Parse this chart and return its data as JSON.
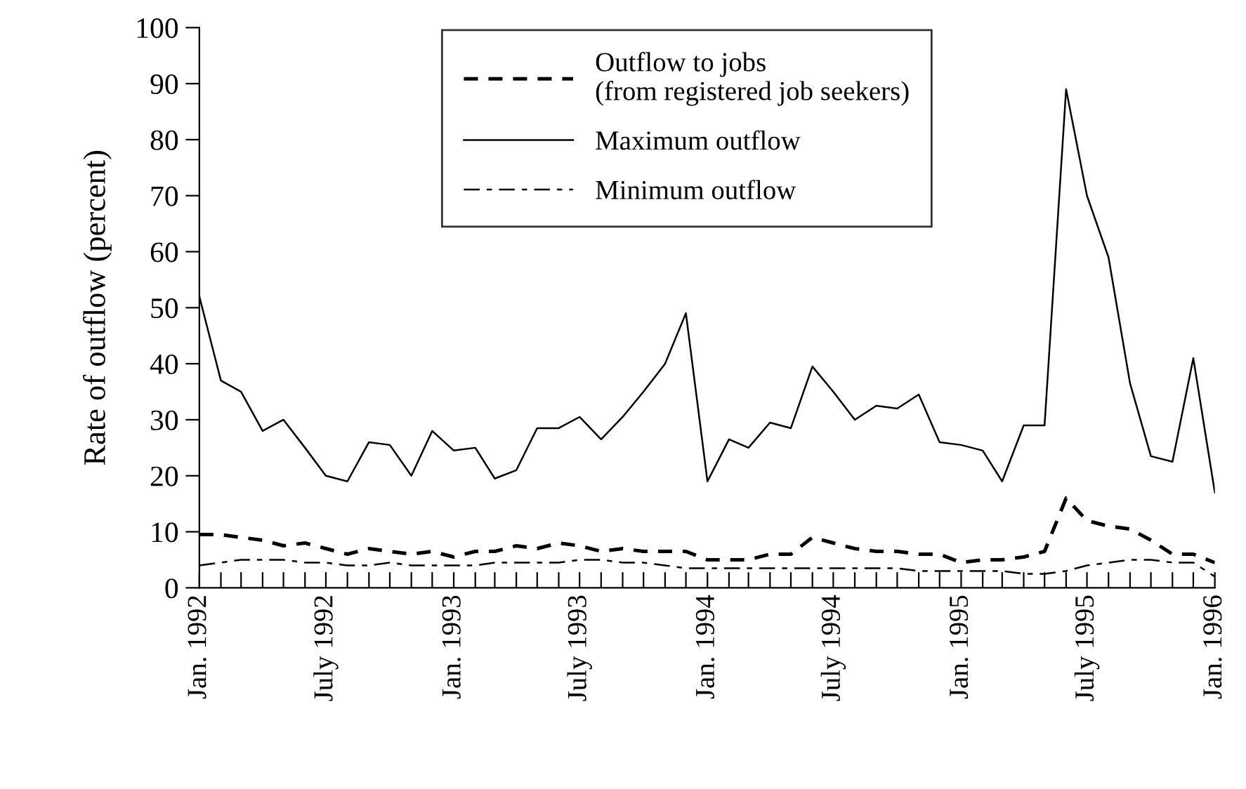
{
  "chart_data": {
    "type": "line",
    "ylabel": "Rate of outflow (percent)",
    "x": [
      "1992-01",
      "1992-02",
      "1992-03",
      "1992-04",
      "1992-05",
      "1992-06",
      "1992-07",
      "1992-08",
      "1992-09",
      "1992-10",
      "1992-11",
      "1992-12",
      "1993-01",
      "1993-02",
      "1993-03",
      "1993-04",
      "1993-05",
      "1993-06",
      "1993-07",
      "1993-08",
      "1993-09",
      "1993-10",
      "1993-11",
      "1993-12",
      "1994-01",
      "1994-02",
      "1994-03",
      "1994-04",
      "1994-05",
      "1994-06",
      "1994-07",
      "1994-08",
      "1994-09",
      "1994-10",
      "1994-11",
      "1994-12",
      "1995-01",
      "1995-02",
      "1995-03",
      "1995-04",
      "1995-05",
      "1995-06",
      "1995-07",
      "1995-08",
      "1995-09",
      "1995-10",
      "1995-11",
      "1995-12",
      "1996-01"
    ],
    "series": [
      {
        "name": "Outflow to jobs (from registered job seekers)",
        "color": "#000000",
        "line_style": "dotted",
        "values": [
          9.5,
          9.5,
          9,
          8.5,
          7.5,
          8,
          7,
          6,
          7,
          6.5,
          6,
          6.5,
          5.5,
          6.5,
          6.5,
          7.5,
          7,
          8,
          7.5,
          6.5,
          7,
          6.5,
          6.5,
          6.5,
          5,
          5,
          5,
          6,
          6,
          9,
          8,
          7,
          6.5,
          6.5,
          6,
          6,
          4.5,
          5,
          5,
          5.5,
          6.5,
          16,
          12,
          11,
          10.5,
          8.5,
          6,
          6,
          4.5
        ]
      },
      {
        "name": "Maximum outflow",
        "color": "#000000",
        "line_style": "solid",
        "values": [
          52,
          37,
          35,
          28,
          30,
          25,
          20,
          19,
          26,
          25.5,
          20,
          28,
          24.5,
          25,
          19.5,
          21,
          28.5,
          28.5,
          30.5,
          26.5,
          30.5,
          35,
          40,
          49,
          19,
          26.5,
          25,
          29.5,
          28.5,
          39.5,
          35,
          30,
          32.5,
          32,
          34.5,
          26,
          25.5,
          24.5,
          19,
          29,
          29,
          89,
          70,
          59,
          36.5,
          23.5,
          22.5,
          41,
          17
        ]
      },
      {
        "name": "Minimum outflow",
        "color": "#000000",
        "line_style": "dashed",
        "values": [
          4,
          4.5,
          5,
          5,
          5,
          4.5,
          4.5,
          4,
          4,
          4.5,
          4,
          4,
          4,
          4,
          4.5,
          4.5,
          4.5,
          4.5,
          5,
          5,
          4.5,
          4.5,
          4,
          3.5,
          3.5,
          3.5,
          3.5,
          3.5,
          3.5,
          3.5,
          3.5,
          3.5,
          3.5,
          3.5,
          3,
          3,
          3,
          3,
          3,
          2.5,
          2.5,
          3,
          4,
          4.5,
          5,
          5,
          4.5,
          4.5,
          2
        ]
      }
    ],
    "xlim": [
      "1992-01",
      "1996-01"
    ],
    "xticks": [
      {
        "value": "1992-01",
        "label": "Jan. 1992"
      },
      {
        "value": "1992-02",
        "label": null
      },
      {
        "value": "1992-03",
        "label": null
      },
      {
        "value": "1992-04",
        "label": null
      },
      {
        "value": "1992-05",
        "label": null
      },
      {
        "value": "1992-06",
        "label": null
      },
      {
        "value": "1992-07",
        "label": "July 1992"
      },
      {
        "value": "1992-08",
        "label": null
      },
      {
        "value": "1992-09",
        "label": null
      },
      {
        "value": "1992-10",
        "label": null
      },
      {
        "value": "1992-11",
        "label": null
      },
      {
        "value": "1992-12",
        "label": null
      },
      {
        "value": "1993-01",
        "label": "Jan. 1993"
      },
      {
        "value": "1993-02",
        "label": null
      },
      {
        "value": "1993-03",
        "label": null
      },
      {
        "value": "1993-04",
        "label": null
      },
      {
        "value": "1993-05",
        "label": null
      },
      {
        "value": "1993-06",
        "label": null
      },
      {
        "value": "1993-07",
        "label": "July 1993"
      },
      {
        "value": "1993-08",
        "label": null
      },
      {
        "value": "1993-09",
        "label": null
      },
      {
        "value": "1993-10",
        "label": null
      },
      {
        "value": "1993-11",
        "label": null
      },
      {
        "value": "1993-12",
        "label": null
      },
      {
        "value": "1994-01",
        "label": "Jan. 1994"
      },
      {
        "value": "1994-02",
        "label": null
      },
      {
        "value": "1994-03",
        "label": null
      },
      {
        "value": "1994-04",
        "label": null
      },
      {
        "value": "1994-05",
        "label": null
      },
      {
        "value": "1994-06",
        "label": null
      },
      {
        "value": "1994-07",
        "label": "July 1994"
      },
      {
        "value": "1994-08",
        "label": null
      },
      {
        "value": "1994-09",
        "label": null
      },
      {
        "value": "1994-10",
        "label": null
      },
      {
        "value": "1994-11",
        "label": null
      },
      {
        "value": "1994-12",
        "label": null
      },
      {
        "value": "1995-01",
        "label": "Jan. 1995"
      },
      {
        "value": "1995-02",
        "label": null
      },
      {
        "value": "1995-03",
        "label": null
      },
      {
        "value": "1995-04",
        "label": null
      },
      {
        "value": "1995-05",
        "label": null
      },
      {
        "value": "1995-06",
        "label": null
      },
      {
        "value": "1995-07",
        "label": "July 1995"
      },
      {
        "value": "1995-08",
        "label": null
      },
      {
        "value": "1995-09",
        "label": null
      },
      {
        "value": "1995-10",
        "label": null
      },
      {
        "value": "1995-11",
        "label": null
      },
      {
        "value": "1995-12",
        "label": null
      },
      {
        "value": "1996-01",
        "label": "Jan. 1996"
      }
    ],
    "ylim": [
      0,
      100
    ],
    "yticks": [
      0,
      10,
      20,
      30,
      40,
      50,
      60,
      70,
      80,
      90,
      100
    ],
    "grid": false,
    "legend": "top",
    "marker": "none"
  }
}
